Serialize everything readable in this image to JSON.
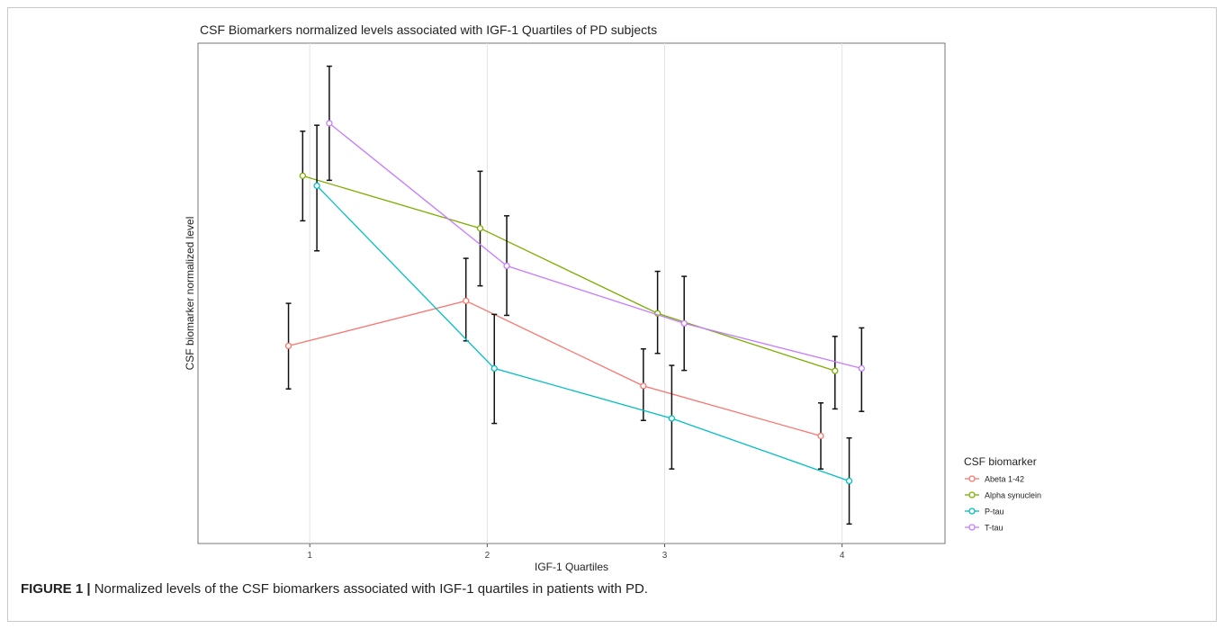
{
  "chart_data": {
    "type": "line",
    "title": "CSF Biomarkers normalized levels associated with IGF-1 Quartiles of PD subjects",
    "xlabel": "IGF-1 Quartiles",
    "ylabel": "CSF biomarker normalized level",
    "categories": [
      "1",
      "2",
      "3",
      "4"
    ],
    "xlim": [
      0.37,
      4.58
    ],
    "ylim": [
      0,
      100
    ],
    "grid": "vertical-major",
    "legend_title": "CSF biomarker",
    "legend_position": "right",
    "error_bars": true,
    "series": [
      {
        "name": "Abeta 1-42",
        "color": "#F8766D",
        "dodge": -0.12,
        "values": [
          39.5,
          48.5,
          31.5,
          21.5
        ],
        "err_low": [
          30.9,
          40.5,
          24.6,
          14.9
        ],
        "err_high": [
          48.0,
          57.0,
          38.9,
          28.1
        ]
      },
      {
        "name": "Alpha synuclein",
        "color": "#7CAE00",
        "dodge": -0.04,
        "values": [
          73.5,
          63.0,
          46.0,
          34.5
        ],
        "err_low": [
          64.5,
          51.5,
          38.0,
          26.9
        ],
        "err_high": [
          82.4,
          74.4,
          54.4,
          41.4
        ]
      },
      {
        "name": "P-tau",
        "color": "#00BFC4",
        "dodge": 0.04,
        "values": [
          71.5,
          35.0,
          25.0,
          12.5
        ],
        "err_low": [
          58.5,
          24.0,
          14.9,
          3.9
        ],
        "err_high": [
          83.6,
          45.8,
          35.6,
          21.1
        ]
      },
      {
        "name": "T-tau",
        "color": "#C77CFF",
        "dodge": 0.11,
        "values": [
          84.0,
          55.5,
          44.0,
          35.0
        ],
        "err_low": [
          72.6,
          45.6,
          34.6,
          26.4
        ],
        "err_high": [
          95.4,
          65.5,
          53.4,
          43.1
        ]
      }
    ]
  },
  "caption": {
    "label": "FIGURE 1 |",
    "text": " Normalized levels of the CSF biomarkers associated with IGF-1 quartiles in patients with PD."
  }
}
